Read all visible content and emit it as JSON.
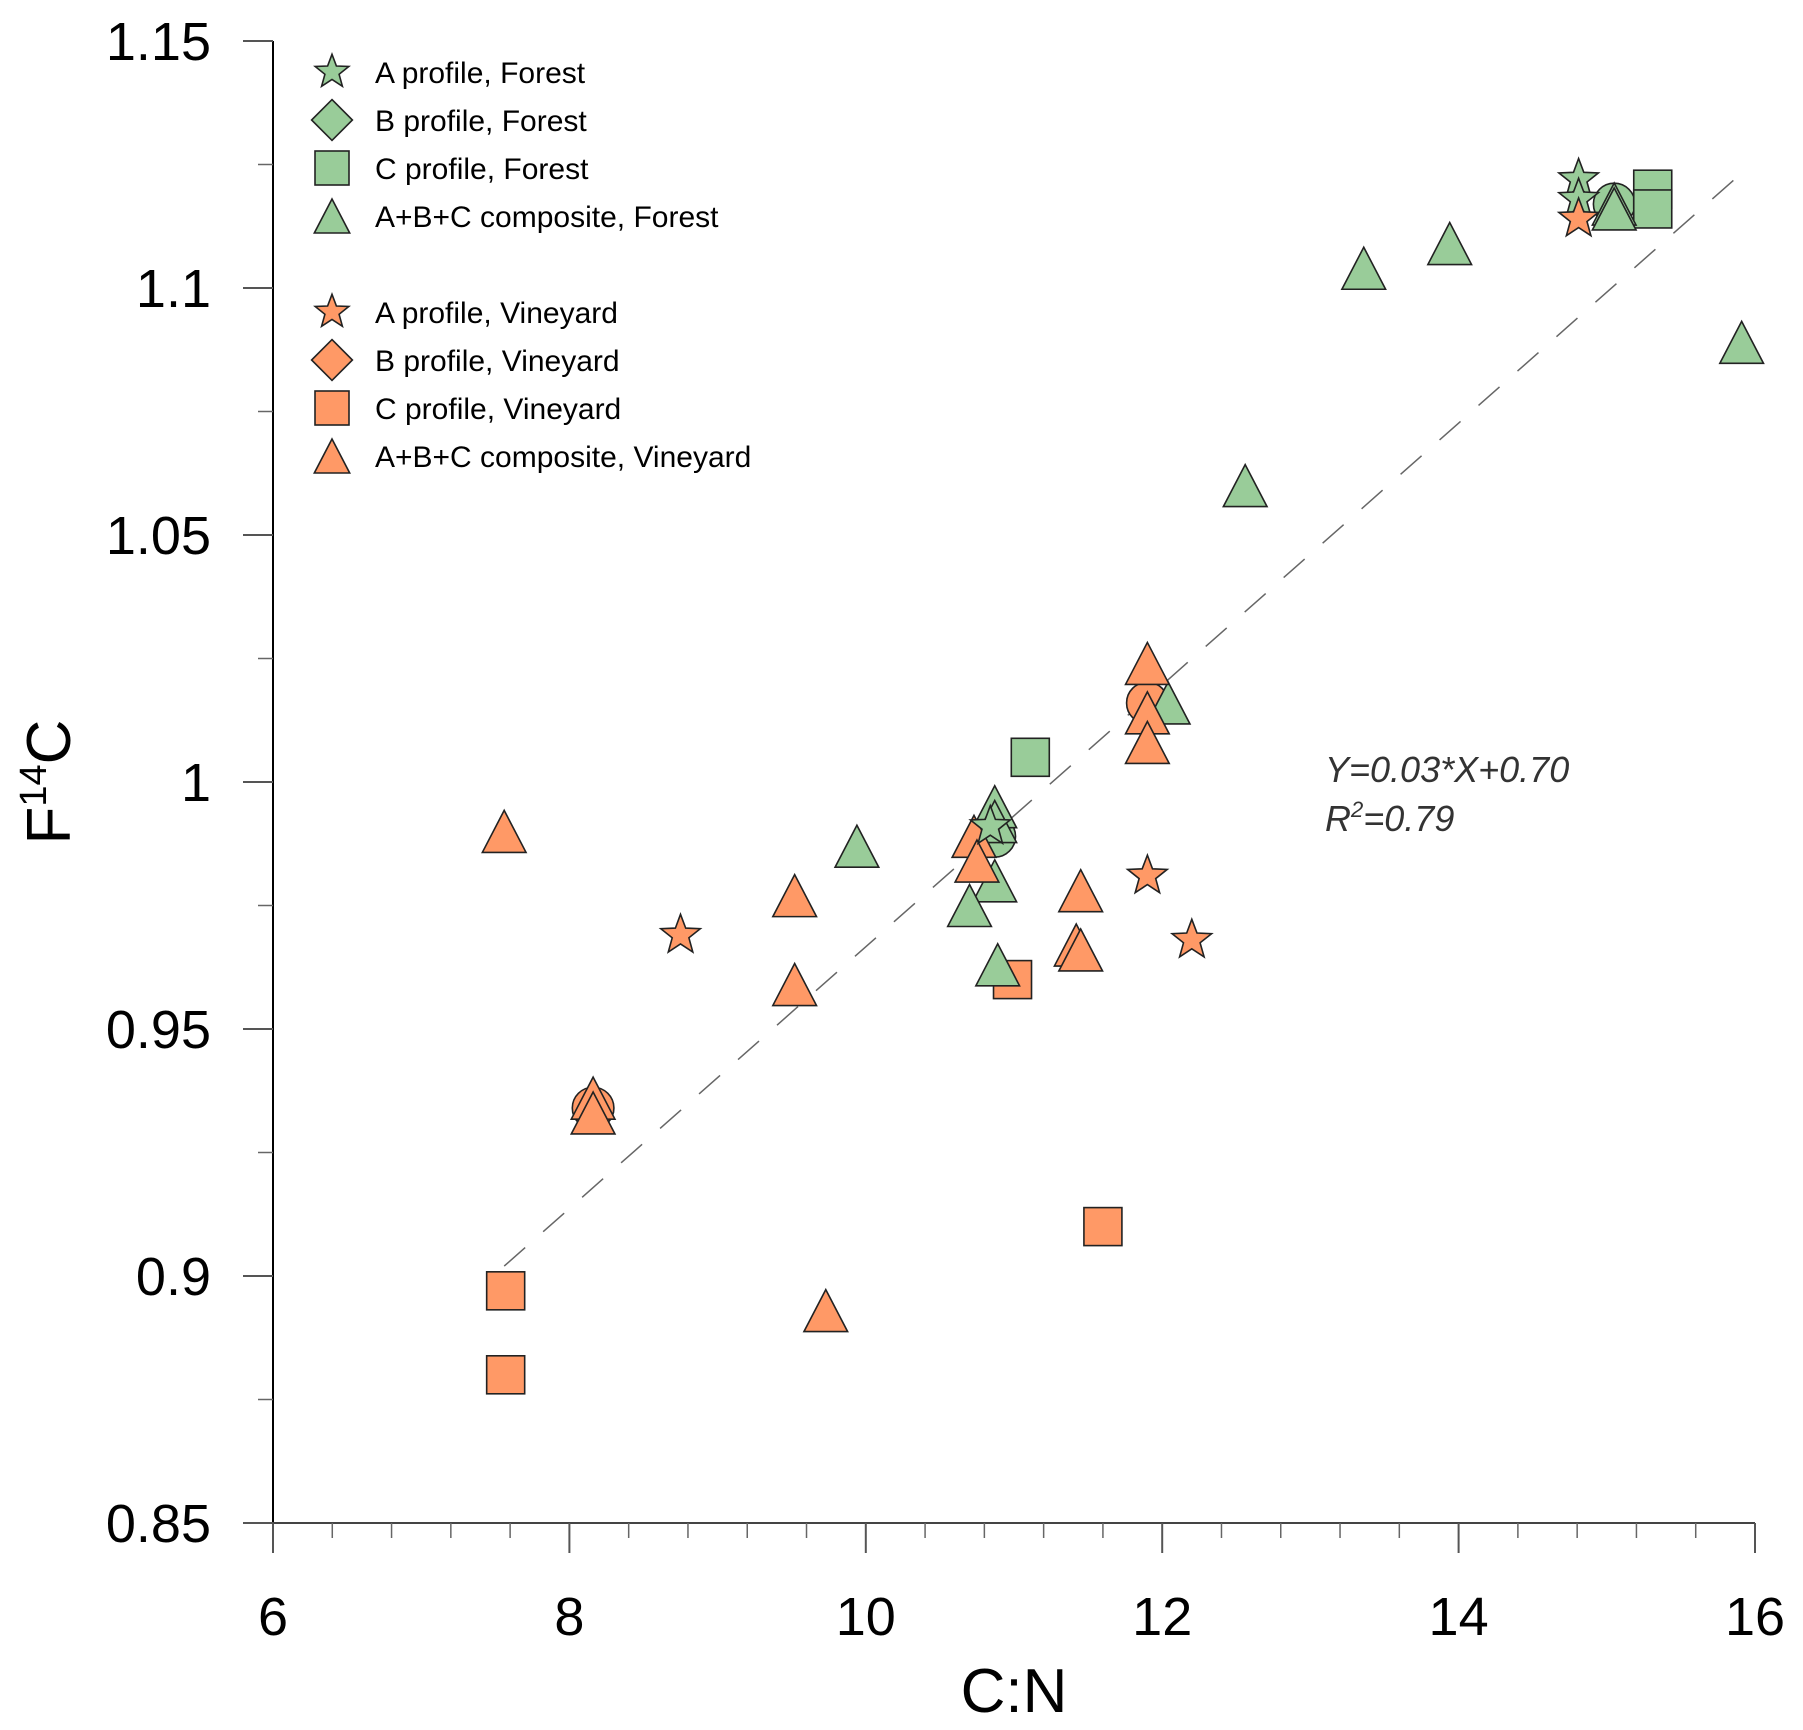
{
  "chart_data": {
    "type": "scatter",
    "title": "",
    "xlabel": "C:N",
    "ylabel": "F14C",
    "ylabel_parts": {
      "base": "F",
      "sup": "14",
      "rest": "C"
    },
    "xlim": [
      6,
      16
    ],
    "ylim": [
      0.85,
      1.15
    ],
    "x_ticks": [
      6,
      8,
      10,
      12,
      14,
      16
    ],
    "x_tick_labels": [
      "6",
      "8",
      "10",
      "12",
      "14",
      "16"
    ],
    "x_minor_step": 0.4,
    "y_ticks": [
      0.85,
      0.9,
      0.95,
      1.0,
      1.05,
      1.1,
      1.15
    ],
    "y_tick_labels": [
      "0.85",
      "0.9",
      "0.95",
      "1",
      "1.05",
      "1.1",
      "1.15"
    ],
    "y_minor_step": 0.025,
    "grid": false,
    "legend_position": "top-left",
    "colors": {
      "forest": "#99cc99",
      "vineyard": "#ff9966",
      "edge": "#222222",
      "fit_line": "#666666"
    },
    "series": [
      {
        "name": "A profile, Forest",
        "marker": "star",
        "color_key": "forest",
        "points": [
          [
            14.81,
            1.122
          ],
          [
            14.81,
            1.118
          ],
          [
            10.84,
            0.991
          ]
        ]
      },
      {
        "name": "B profile, Forest",
        "marker": "diamond",
        "color_key": "forest",
        "points": []
      },
      {
        "name": "C profile, Forest",
        "marker": "square",
        "color_key": "forest",
        "points": [
          [
            15.31,
            1.12
          ],
          [
            15.31,
            1.116
          ],
          [
            11.11,
            1.005
          ]
        ]
      },
      {
        "name": "A+B+C composite, Forest",
        "marker": "triangle",
        "color_key": "forest",
        "points": [
          [
            15.05,
            1.117
          ],
          [
            15.05,
            1.116
          ],
          [
            13.36,
            1.104
          ],
          [
            13.94,
            1.109
          ],
          [
            15.91,
            1.089
          ],
          [
            12.56,
            1.06
          ],
          [
            12.04,
            1.016
          ],
          [
            9.94,
            0.987
          ],
          [
            10.87,
            0.995
          ],
          [
            10.87,
            0.992
          ],
          [
            10.87,
            0.98
          ],
          [
            10.7,
            0.975
          ],
          [
            10.89,
            0.963
          ]
        ]
      },
      {
        "name": "",
        "marker": "circle",
        "color_key": "forest",
        "legend_hidden": true,
        "points": [
          [
            15.05,
            1.117
          ],
          [
            10.87,
            0.989
          ]
        ]
      },
      {
        "name": "A profile, Vineyard",
        "marker": "star",
        "color_key": "vineyard",
        "points": [
          [
            14.81,
            1.114
          ],
          [
            8.75,
            0.969
          ],
          [
            11.9,
            0.981
          ],
          [
            12.2,
            0.968
          ]
        ]
      },
      {
        "name": "B profile, Vineyard",
        "marker": "diamond",
        "color_key": "vineyard",
        "points": []
      },
      {
        "name": "C profile, Vineyard",
        "marker": "square",
        "color_key": "vineyard",
        "points": [
          [
            7.57,
            0.897
          ],
          [
            7.57,
            0.88
          ],
          [
            10.99,
            0.96
          ],
          [
            11.6,
            0.91
          ]
        ]
      },
      {
        "name": "A+B+C composite, Vineyard",
        "marker": "triangle",
        "color_key": "vineyard",
        "points": [
          [
            7.56,
            0.99
          ],
          [
            9.52,
            0.977
          ],
          [
            9.52,
            0.959
          ],
          [
            9.73,
            0.893
          ],
          [
            10.73,
            0.989
          ],
          [
            10.75,
            0.984
          ],
          [
            11.9,
            1.024
          ],
          [
            11.9,
            1.014
          ],
          [
            11.9,
            1.008
          ],
          [
            11.45,
            0.978
          ],
          [
            11.42,
            0.967
          ],
          [
            11.45,
            0.966
          ],
          [
            8.16,
            0.936
          ],
          [
            8.16,
            0.933
          ]
        ]
      },
      {
        "name": "",
        "marker": "circle",
        "color_key": "vineyard",
        "legend_hidden": true,
        "points": [
          [
            11.9,
            1.016
          ],
          [
            8.16,
            0.934
          ]
        ]
      }
    ],
    "fit_line": {
      "style": "dashed",
      "x": [
        7.56,
        15.9
      ],
      "y": [
        0.902,
        1.123
      ]
    },
    "annotations": [
      {
        "text": "Y=0.03*X+0.70",
        "x": 13.0,
        "y": 1.003
      },
      {
        "text_base": "R",
        "text_sup": "2",
        "text_rest": "=0.79",
        "x": 13.0,
        "y": 0.993
      }
    ],
    "legend": {
      "forest_group": [
        "A profile, Forest",
        "B profile, Forest",
        "C profile, Forest",
        "A+B+C composite, Forest"
      ],
      "vineyard_group": [
        "A profile, Vineyard",
        "B profile, Vineyard",
        "C profile, Vineyard",
        "A+B+C composite, Vineyard"
      ]
    }
  }
}
